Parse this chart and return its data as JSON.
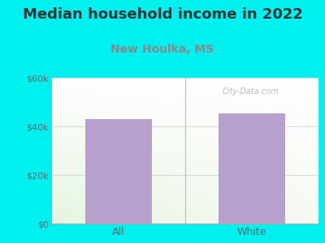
{
  "title": "Median household income in 2022",
  "subtitle": "New Houlka, MS",
  "categories": [
    "All",
    "White"
  ],
  "values": [
    43000,
    45500
  ],
  "bar_color": "#b8a0cc",
  "title_fontsize": 13,
  "subtitle_fontsize": 10,
  "title_color": "#333333",
  "subtitle_color": "#888888",
  "tick_label_color": "#666666",
  "background_outer": "#00f0f0",
  "ylim": [
    0,
    60000
  ],
  "yticks": [
    0,
    20000,
    40000,
    60000
  ],
  "ytick_labels": [
    "$0",
    "$20k",
    "$40k",
    "$60k"
  ],
  "watermark": "City-Data.com"
}
